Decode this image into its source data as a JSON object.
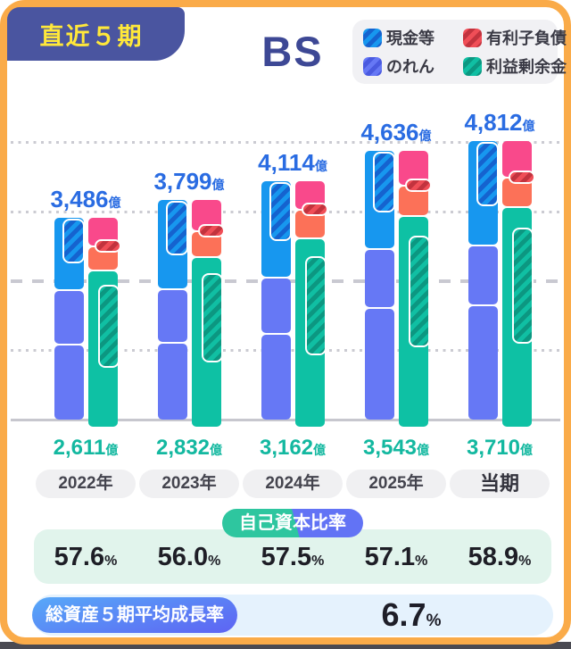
{
  "header": {
    "badge": "直近５期",
    "title": "BS"
  },
  "legend": {
    "items": [
      {
        "id": "cash",
        "label": "現金等",
        "base": "#1797EF",
        "stripe": "#1563CF"
      },
      {
        "id": "debt",
        "label": "有利子負債",
        "base": "#F04E57",
        "stripe": "#C2333E"
      },
      {
        "id": "goodwill",
        "label": "のれん",
        "base": "#6678F5",
        "stripe": "#4A5AE0"
      },
      {
        "id": "retained",
        "label": "利益剰余金",
        "base": "#10BFA3",
        "stripe": "#0C9781"
      }
    ]
  },
  "chart_data": {
    "type": "bar",
    "subtype": "paired-stacked-rounded",
    "unit": "億",
    "ylim": [
      0,
      4812
    ],
    "gridlines": [
      0,
      1200,
      2400,
      3600,
      4800
    ],
    "categories": [
      "2022年",
      "2023年",
      "2024年",
      "2025年",
      "当期"
    ],
    "totals": [
      3486,
      3799,
      4114,
      4636,
      4812
    ],
    "total_labels": [
      "3,486",
      "3,799",
      "4,114",
      "4,636",
      "4,812"
    ],
    "retained_values": [
      2611,
      2832,
      3162,
      3543,
      3710
    ],
    "retained_labels": [
      "2,611",
      "2,832",
      "3,162",
      "3,543",
      "3,710"
    ],
    "left_bar_series": [
      {
        "name": "cash_and_current_assets",
        "color": "#1797EF",
        "values": [
          1255,
          1560,
          1670,
          1700,
          1805
        ]
      },
      {
        "name": "goodwill_upper_purple",
        "color": "#6678F5",
        "values": [
          930,
          910,
          955,
          1000,
          1015
        ]
      },
      {
        "name": "other_assets_lower_purple",
        "color": "#6678F5",
        "values": [
          1301,
          1329,
          1489,
          1936,
          1992
        ]
      }
    ],
    "right_bar_series": [
      {
        "name": "other_liabilities_equity_pink",
        "color": "#F9498B",
        "values": [
          480,
          535,
          480,
          590,
          620
        ]
      },
      {
        "name": "interest_bearing_debt_orange",
        "color": "#FC7158",
        "values": [
          395,
          432,
          472,
          503,
          482
        ]
      },
      {
        "name": "retained_earnings_teal",
        "color": "#0EC1A4",
        "values": [
          2611,
          2832,
          3162,
          3543,
          3710
        ]
      }
    ],
    "equity_ratio_pct": [
      57.6,
      56.0,
      57.5,
      57.1,
      58.9
    ],
    "avg_growth_pct": 6.7
  },
  "equity_ratio": {
    "label": "自己資本比率",
    "values": [
      "57.6",
      "56.0",
      "57.5",
      "57.1",
      "58.9"
    ],
    "suffix": "%"
  },
  "growth": {
    "label": "総資産５期平均成長率",
    "value": "6.7",
    "suffix": "%"
  }
}
